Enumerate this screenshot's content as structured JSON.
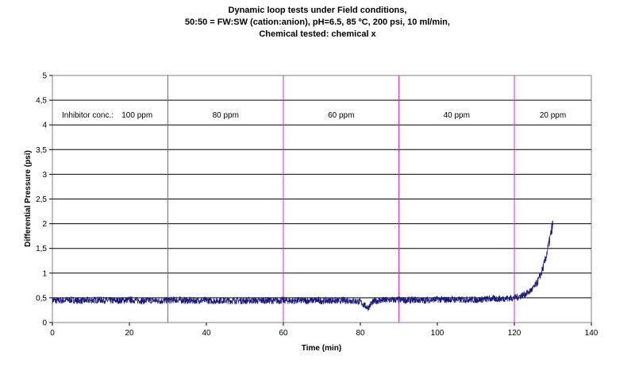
{
  "chart_data": {
    "type": "line",
    "title_lines": [
      "Dynamic loop tests under Field conditions,",
      "50:50 = FW:SW (cation:anion), pH=6.5, 85 ºC, 200 psi, 10 ml/min,",
      "Chemical tested: chemical x"
    ],
    "xlabel": "Time (min)",
    "ylabel": "Differential Pressure (psi)",
    "xlim": [
      0,
      140
    ],
    "ylim": [
      0,
      5
    ],
    "x_ticks": [
      0,
      20,
      40,
      60,
      80,
      100,
      120,
      140
    ],
    "x_tick_labels": [
      "0",
      "20",
      "40",
      "60",
      "80",
      "100",
      "120",
      "140"
    ],
    "y_ticks": [
      0,
      0.5,
      1,
      1.5,
      2,
      2.5,
      3,
      3.5,
      4,
      4.5,
      5
    ],
    "y_tick_labels": [
      "0",
      "0,5",
      "1",
      "1,5",
      "2",
      "2,5",
      "3",
      "3,5",
      "4",
      "4,5",
      "5"
    ],
    "grid": "horizontal",
    "legend": "none",
    "phase_dividers_x": [
      30,
      60,
      90,
      120
    ],
    "phase_label_y": 4.2,
    "inhibitor_prefix": "Inhibitor conc.:",
    "phases": [
      {
        "label": "100 ppm",
        "x_center": 22
      },
      {
        "label": "80 ppm",
        "x_center": 45
      },
      {
        "label": "60 ppm",
        "x_center": 75
      },
      {
        "label": "40 ppm",
        "x_center": 105
      },
      {
        "label": "20 ppm",
        "x_center": 130
      }
    ],
    "series": [
      {
        "color": "#1a1a7a",
        "x": [
          0,
          2,
          4,
          6,
          8,
          10,
          12,
          14,
          16,
          18,
          20,
          22,
          24,
          26,
          28,
          30,
          32,
          34,
          36,
          38,
          40,
          42,
          44,
          46,
          48,
          50,
          52,
          54,
          56,
          58,
          60,
          62,
          64,
          66,
          68,
          70,
          72,
          74,
          76,
          78,
          80,
          81,
          82,
          83,
          84,
          86,
          88,
          90,
          92,
          94,
          96,
          98,
          100,
          102,
          104,
          106,
          108,
          110,
          112,
          114,
          116,
          118,
          120,
          121,
          122,
          123,
          124,
          125,
          126,
          127,
          128,
          129,
          130
        ],
        "y": [
          0.45,
          0.44,
          0.46,
          0.45,
          0.44,
          0.45,
          0.46,
          0.45,
          0.44,
          0.45,
          0.46,
          0.45,
          0.44,
          0.45,
          0.44,
          0.45,
          0.46,
          0.45,
          0.44,
          0.45,
          0.45,
          0.44,
          0.45,
          0.44,
          0.45,
          0.44,
          0.45,
          0.44,
          0.45,
          0.44,
          0.45,
          0.44,
          0.45,
          0.44,
          0.45,
          0.44,
          0.45,
          0.44,
          0.45,
          0.44,
          0.42,
          0.35,
          0.3,
          0.4,
          0.44,
          0.45,
          0.46,
          0.46,
          0.45,
          0.46,
          0.45,
          0.46,
          0.47,
          0.46,
          0.47,
          0.46,
          0.47,
          0.46,
          0.47,
          0.48,
          0.48,
          0.49,
          0.5,
          0.52,
          0.55,
          0.58,
          0.63,
          0.7,
          0.82,
          1.0,
          1.25,
          1.6,
          2.0
        ],
        "noise_amplitude": 0.07
      }
    ]
  }
}
